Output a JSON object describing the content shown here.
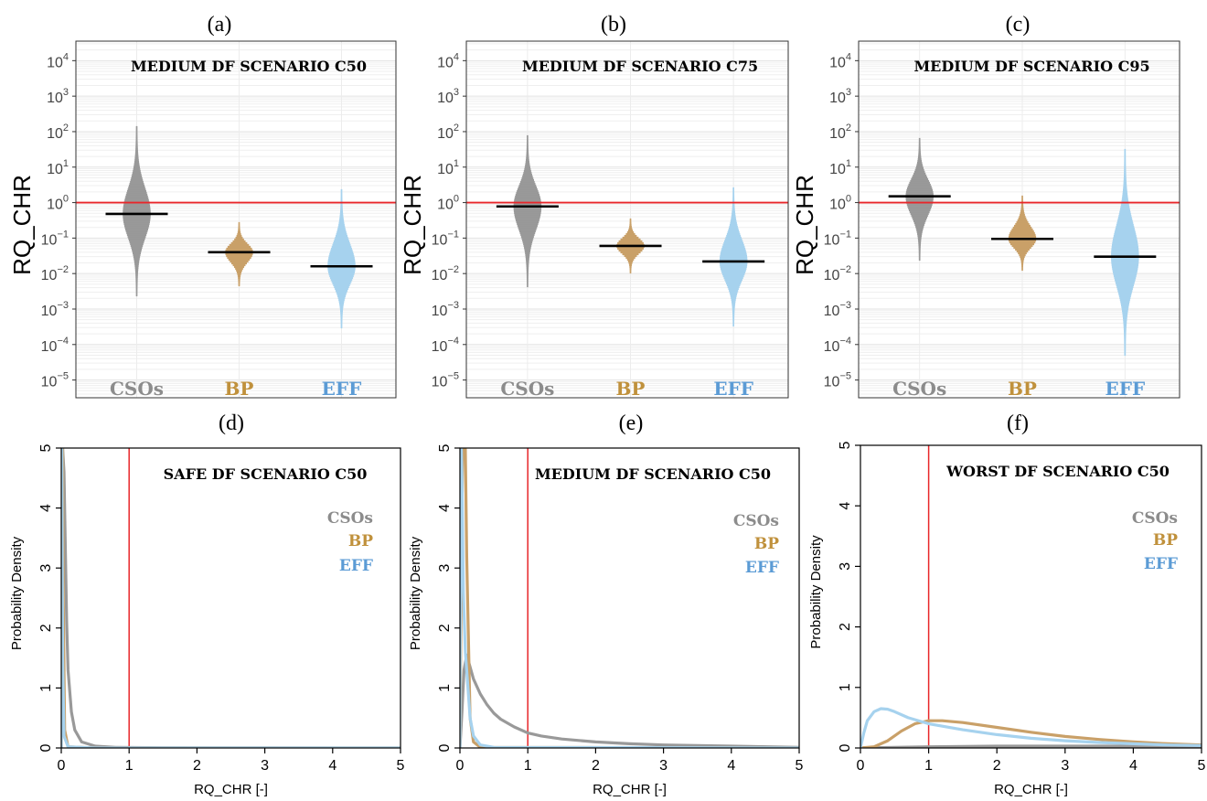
{
  "chart_data": [
    {
      "panel": "(a)",
      "type": "violin",
      "title": "MEDIUM DF SCENARIO C50",
      "ylabel": "RQ_CHR",
      "yscale": "log",
      "ylim_exp": [
        -5,
        4
      ],
      "threshold": 1,
      "threshold_color": "#e8262a",
      "categories": [
        "CSOs",
        "BP",
        "EFF"
      ],
      "colors": [
        "#999999",
        "#c9a068",
        "#a6d2ee"
      ],
      "label_colors": [
        "#8c8c8c",
        "#c0913c",
        "#5b9bd5"
      ],
      "median": [
        0.48,
        0.04,
        0.016
      ],
      "range": [
        [
          0.0025,
          130
        ],
        [
          0.0045,
          0.25
        ],
        [
          0.0003,
          2.2
        ]
      ]
    },
    {
      "panel": "(b)",
      "type": "violin",
      "title": "MEDIUM DF SCENARIO C75",
      "ylabel": "RQ_CHR",
      "yscale": "log",
      "ylim_exp": [
        -5,
        4
      ],
      "threshold": 1,
      "threshold_color": "#e8262a",
      "categories": [
        "CSOs",
        "BP",
        "EFF"
      ],
      "colors": [
        "#999999",
        "#c9a068",
        "#a6d2ee"
      ],
      "label_colors": [
        "#8c8c8c",
        "#c0913c",
        "#5b9bd5"
      ],
      "median": [
        0.78,
        0.06,
        0.022
      ],
      "range": [
        [
          0.0045,
          70
        ],
        [
          0.011,
          0.32
        ],
        [
          0.00035,
          2.5
        ]
      ]
    },
    {
      "panel": "(c)",
      "type": "violin",
      "title": "MEDIUM DF SCENARIO C95",
      "ylabel": "RQ_CHR",
      "yscale": "log",
      "ylim_exp": [
        -5,
        4
      ],
      "threshold": 1,
      "threshold_color": "#e8262a",
      "categories": [
        "CSOs",
        "BP",
        "EFF"
      ],
      "colors": [
        "#999999",
        "#c9a068",
        "#a6d2ee"
      ],
      "label_colors": [
        "#8c8c8c",
        "#c0913c",
        "#5b9bd5"
      ],
      "median": [
        1.5,
        0.095,
        0.03
      ],
      "range": [
        [
          0.025,
          60
        ],
        [
          0.013,
          1.4
        ],
        [
          5e-05,
          30
        ]
      ]
    },
    {
      "panel": "(d)",
      "type": "line",
      "title": "SAFE DF SCENARIO C50",
      "xlabel": "RQ_CHR [-]",
      "ylabel": "Probability Density",
      "xlim": [
        0,
        5
      ],
      "ylim": [
        0,
        5
      ],
      "vline": 1,
      "series": [
        {
          "name": "CSOs",
          "color": "#999999",
          "label_color": "#8c8c8c",
          "x": [
            0.02,
            0.04,
            0.06,
            0.08,
            0.1,
            0.15,
            0.2,
            0.3,
            0.5,
            0.8,
            1.5,
            3,
            5
          ],
          "y": [
            5,
            4.6,
            3.3,
            2.1,
            1.3,
            0.6,
            0.3,
            0.1,
            0.03,
            0.01,
            0.005,
            0.002,
            0
          ]
        },
        {
          "name": "BP",
          "color": "#c9a068",
          "label_color": "#c0913c",
          "x": [
            0,
            0.01,
            0.02,
            0.03,
            0.05,
            0.1,
            0.5,
            5
          ],
          "y": [
            0,
            5,
            5,
            2.5,
            0.3,
            0.02,
            0,
            0
          ]
        },
        {
          "name": "EFF",
          "color": "#a6d2ee",
          "label_color": "#5b9bd5",
          "x": [
            0,
            0.005,
            0.01,
            0.015,
            0.02,
            0.04,
            0.1,
            0.5,
            5
          ],
          "y": [
            0,
            5,
            5,
            3,
            1.5,
            0.2,
            0.02,
            0,
            0
          ]
        }
      ]
    },
    {
      "panel": "(e)",
      "type": "line",
      "title": "MEDIUM DF SCENARIO C50",
      "xlabel": "RQ_CHR [-]",
      "ylabel": "Probability Density",
      "xlim": [
        0,
        5
      ],
      "ylim": [
        0,
        5
      ],
      "vline": 1,
      "series": [
        {
          "name": "CSOs",
          "color": "#999999",
          "label_color": "#8c8c8c",
          "x": [
            0,
            0.03,
            0.06,
            0.1,
            0.15,
            0.2,
            0.3,
            0.4,
            0.5,
            0.6,
            0.8,
            1,
            1.2,
            1.5,
            2,
            2.5,
            3,
            3.5,
            4,
            5
          ],
          "y": [
            0,
            0.6,
            1.3,
            1.55,
            1.35,
            1.15,
            0.9,
            0.72,
            0.58,
            0.48,
            0.35,
            0.25,
            0.2,
            0.15,
            0.1,
            0.07,
            0.05,
            0.04,
            0.03,
            0.01
          ]
        },
        {
          "name": "BP",
          "color": "#c9a068",
          "label_color": "#c0913c",
          "x": [
            0,
            0.02,
            0.04,
            0.06,
            0.08,
            0.1,
            0.15,
            0.2,
            0.3,
            5
          ],
          "y": [
            0,
            3,
            5,
            5,
            5,
            3.2,
            0.5,
            0.1,
            0.01,
            0
          ]
        },
        {
          "name": "EFF",
          "color": "#a6d2ee",
          "label_color": "#5b9bd5",
          "x": [
            0,
            0.01,
            0.02,
            0.03,
            0.05,
            0.08,
            0.1,
            0.15,
            0.2,
            0.3,
            0.5,
            5
          ],
          "y": [
            0,
            5,
            5,
            4.5,
            2.6,
            1.6,
            1.3,
            0.5,
            0.2,
            0.05,
            0.01,
            0
          ]
        }
      ]
    },
    {
      "panel": "(f)",
      "type": "line",
      "title": "WORST DF SCENARIO C50",
      "xlabel": "RQ_CHR [-]",
      "ylabel": "Probability Density",
      "xlim": [
        0,
        5
      ],
      "ylim": [
        0,
        5
      ],
      "vline": 1,
      "series": [
        {
          "name": "CSOs",
          "color": "#999999",
          "label_color": "#8c8c8c",
          "x": [
            0,
            0.5,
            1,
            2,
            3,
            4,
            5
          ],
          "y": [
            0,
            0.01,
            0.02,
            0.03,
            0.03,
            0.03,
            0.02
          ]
        },
        {
          "name": "BP",
          "color": "#c9a068",
          "label_color": "#c0913c",
          "x": [
            0,
            0.2,
            0.4,
            0.6,
            0.8,
            1,
            1.2,
            1.5,
            2,
            2.5,
            3,
            3.5,
            4,
            4.5,
            5
          ],
          "y": [
            0,
            0.02,
            0.12,
            0.28,
            0.4,
            0.45,
            0.45,
            0.42,
            0.34,
            0.26,
            0.19,
            0.14,
            0.1,
            0.07,
            0.05
          ]
        },
        {
          "name": "EFF",
          "color": "#a6d2ee",
          "label_color": "#5b9bd5",
          "x": [
            0,
            0.05,
            0.1,
            0.2,
            0.3,
            0.4,
            0.5,
            0.7,
            1,
            1.5,
            2,
            2.5,
            3,
            3.5,
            4,
            4.5,
            5
          ],
          "y": [
            0,
            0.25,
            0.45,
            0.6,
            0.65,
            0.64,
            0.6,
            0.5,
            0.4,
            0.3,
            0.22,
            0.16,
            0.12,
            0.09,
            0.07,
            0.05,
            0.04
          ]
        }
      ]
    }
  ]
}
